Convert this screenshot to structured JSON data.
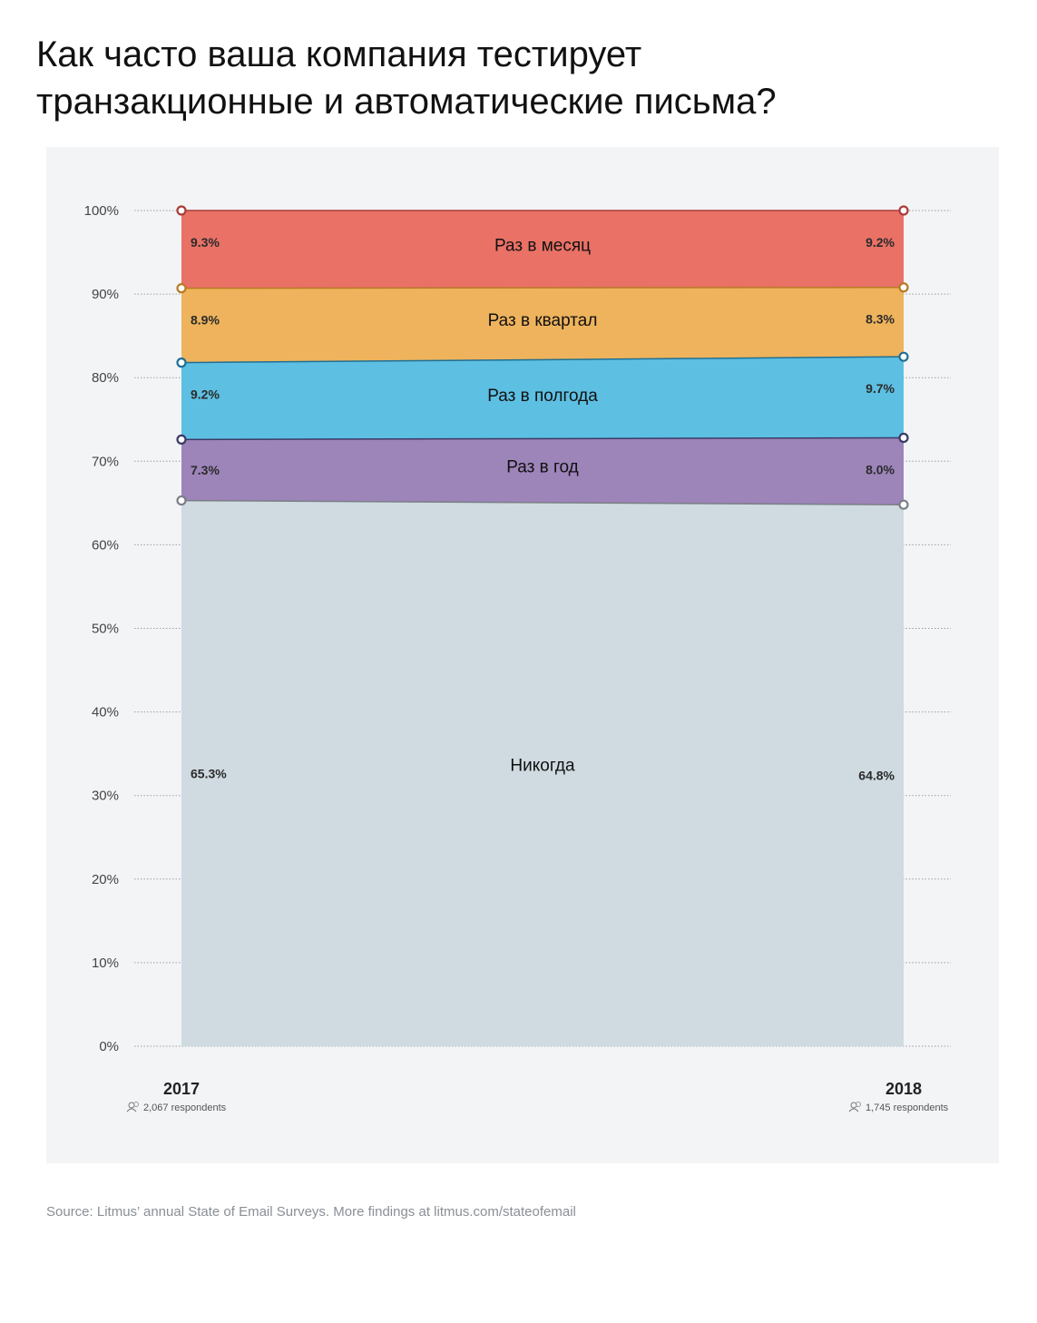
{
  "title_lines": [
    "Как часто ваша компания тестирует",
    "транзакционные и автоматические письма?"
  ],
  "source": "Source: Litmus’ annual State of Email Surveys. More findings at litmus.com/stateofemail",
  "chart_data": {
    "type": "area",
    "stacked": true,
    "x": [
      "2017",
      "2018"
    ],
    "respondents": [
      "2,067 respondents",
      "1,745 respondents"
    ],
    "ylim": [
      0,
      100
    ],
    "y_ticks": [
      "0%",
      "10%",
      "20%",
      "30%",
      "40%",
      "50%",
      "60%",
      "70%",
      "80%",
      "90%",
      "100%"
    ],
    "grid": "horizontal-dotted",
    "series": [
      {
        "name": "Никогда",
        "values": [
          65.3,
          64.8
        ],
        "labels": [
          "65.3%",
          "64.8%"
        ],
        "fill": "#cfdae1",
        "stroke": "#7a7f85"
      },
      {
        "name": "Раз в год",
        "values": [
          7.3,
          8.0
        ],
        "labels": [
          "7.3%",
          "8.0%"
        ],
        "fill": "#9d84b9",
        "stroke": "#3c3a66"
      },
      {
        "name": "Раз в полгода",
        "values": [
          9.2,
          9.7
        ],
        "labels": [
          "9.2%",
          "9.7%"
        ],
        "fill": "#5dbfe2",
        "stroke": "#1f6f95"
      },
      {
        "name": "Раз в квартал",
        "values": [
          8.9,
          8.3
        ],
        "labels": [
          "8.9%",
          "8.3%"
        ],
        "fill": "#eeb35c",
        "stroke": "#b97a23"
      },
      {
        "name": "Раз в месяц",
        "values": [
          9.3,
          9.2
        ],
        "labels": [
          "9.3%",
          "9.2%"
        ],
        "fill": "#e97166",
        "stroke": "#a93c38"
      }
    ]
  }
}
